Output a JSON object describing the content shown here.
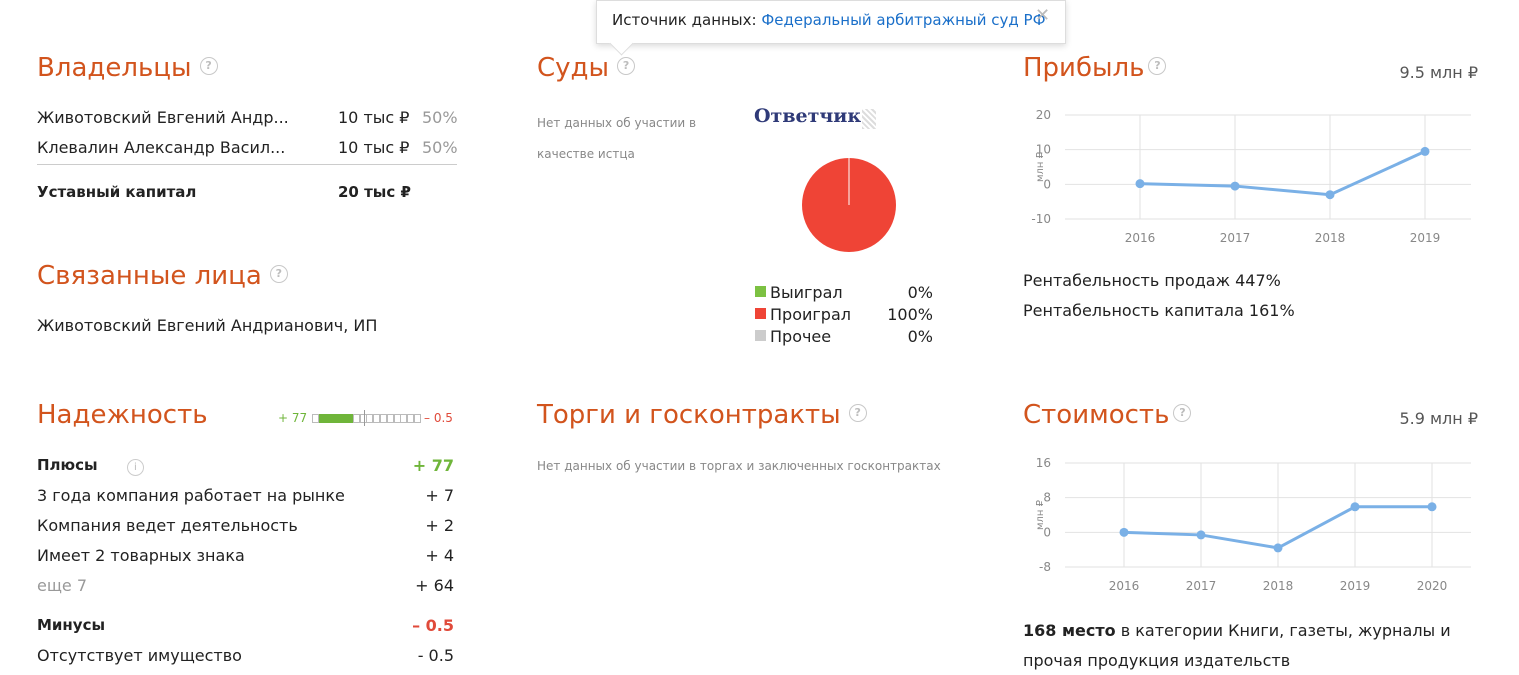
{
  "tooltip": {
    "label": "Источник данных:",
    "link": "Федеральный арбитражный суд РФ",
    "close": "✕"
  },
  "owners": {
    "title": "Владельцы",
    "rows": [
      {
        "name": "Животовский Евгений Андр...",
        "amount": "10 тыс ₽",
        "share": "50%"
      },
      {
        "name": "Клевалин Александр Васил...",
        "amount": "10 тыс ₽",
        "share": "50%"
      }
    ],
    "capital_label": "Уставный капитал",
    "capital_value": "20 тыс ₽"
  },
  "related": {
    "title": "Связанные лица",
    "item": "Животовский Евгений Андрианович, ИП"
  },
  "courts": {
    "title": "Суды",
    "note": "Нет данных об участии в качестве истца",
    "role": "Ответчик",
    "legend": [
      {
        "label": "Выиграл",
        "value": "0%",
        "color": "#7cc142"
      },
      {
        "label": "Проиграл",
        "value": "100%",
        "color": "#ef4436"
      },
      {
        "label": "Прочее",
        "value": "0%",
        "color": "#cccccc"
      }
    ]
  },
  "profit": {
    "title": "Прибыль",
    "value": "9.5 млн ₽",
    "ratios": [
      "Рентабельность продаж 447%",
      "Рентабельность капитала 161%"
    ]
  },
  "reliability": {
    "title": "Надежность",
    "scale_plus": "+ 77",
    "scale_minus": "– 0.5",
    "scale_filled": 6,
    "scale_total": 16,
    "plus_label": "Плюсы",
    "plus_total": "+ 77",
    "plus_items": [
      {
        "label": "3 года компания работает на рынке",
        "value": "+ 7"
      },
      {
        "label": "Компания ведет деятельность",
        "value": "+ 2"
      },
      {
        "label": "Имеет 2 товарных знака",
        "value": "+ 4"
      }
    ],
    "more_label": "еще 7",
    "more_value": "+ 64",
    "minus_label": "Минусы",
    "minus_total": "– 0.5",
    "minus_items": [
      {
        "label": "Отсутствует имущество",
        "value": "- 0.5"
      }
    ]
  },
  "tenders": {
    "title": "Торги и госконтракты",
    "note": "Нет данных об участии в торгах и заключенных госконтрактах"
  },
  "cost": {
    "title": "Стоимость",
    "value": "5.9 млн ₽",
    "rank": "168 место",
    "rank_text": " в категории Книги, газеты, журналы и",
    "rank_text2": "прочая продукция издательств"
  },
  "chart_data": [
    {
      "type": "line",
      "ylabel": "млн ₽",
      "x": [
        "2016",
        "2017",
        "2018",
        "2019"
      ],
      "series": [
        {
          "values": [
            0.2,
            -0.5,
            -3,
            9.5
          ]
        }
      ],
      "ylim": [
        -10,
        20
      ],
      "yticks": [
        20,
        10,
        0,
        -10
      ],
      "grid": true,
      "color": "#7ab0e6"
    },
    {
      "type": "line",
      "ylabel": "млн ₽",
      "x": [
        "2016",
        "2017",
        "2018",
        "2019",
        "2020"
      ],
      "series": [
        {
          "values": [
            0,
            -0.6,
            -3.6,
            5.9,
            5.9
          ]
        }
      ],
      "ylim": [
        -8,
        16
      ],
      "yticks": [
        16,
        8,
        0,
        -8
      ],
      "grid": true,
      "color": "#7ab0e6"
    },
    {
      "type": "pie",
      "categories": [
        "Выиграл",
        "Проиграл",
        "Прочее"
      ],
      "values": [
        0,
        100,
        0
      ],
      "colors": [
        "#7cc142",
        "#ef4436",
        "#cccccc"
      ]
    }
  ]
}
